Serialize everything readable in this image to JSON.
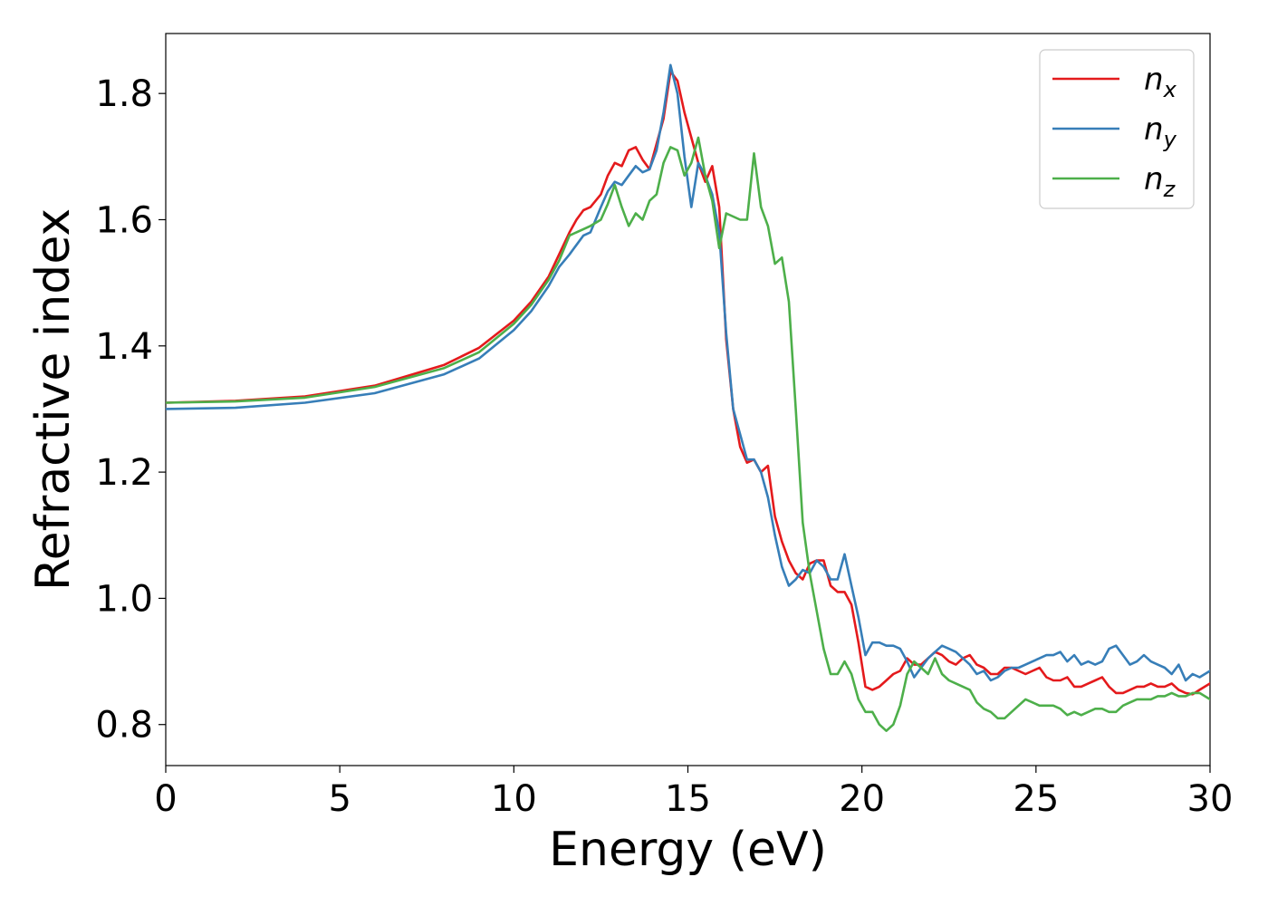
{
  "chart_data": {
    "type": "line",
    "title": "",
    "xlabel": "Energy (eV)",
    "ylabel": "Refractive index",
    "xlim": [
      0,
      30
    ],
    "ylim": [
      0.735,
      1.895
    ],
    "xticks": [
      0,
      5,
      10,
      15,
      20,
      25,
      30
    ],
    "xtick_labels": [
      "0",
      "5",
      "10",
      "15",
      "20",
      "25",
      "30"
    ],
    "yticks": [
      0.8,
      1.0,
      1.2,
      1.4,
      1.6,
      1.8
    ],
    "ytick_labels": [
      "0.8",
      "1.0",
      "1.2",
      "1.4",
      "1.6",
      "1.8"
    ],
    "grid": false,
    "legend_position": "top-right",
    "series": [
      {
        "name": "n_x",
        "label_base": "n",
        "label_sub": "x",
        "color": "#e41a1c",
        "x": [
          0,
          2,
          4,
          6,
          8,
          9,
          10,
          10.5,
          11,
          11.3,
          11.6,
          11.8,
          12,
          12.2,
          12.5,
          12.7,
          12.9,
          13.1,
          13.3,
          13.5,
          13.7,
          13.9,
          14.1,
          14.3,
          14.5,
          14.7,
          14.9,
          15.1,
          15.3,
          15.5,
          15.7,
          15.9,
          16.1,
          16.3,
          16.5,
          16.7,
          16.9,
          17.1,
          17.3,
          17.5,
          17.7,
          17.9,
          18.1,
          18.3,
          18.5,
          18.7,
          18.9,
          19.1,
          19.3,
          19.5,
          19.7,
          19.9,
          20.1,
          20.3,
          20.5,
          20.7,
          20.9,
          21.1,
          21.3,
          21.5,
          21.7,
          21.9,
          22.1,
          22.3,
          22.5,
          22.7,
          22.9,
          23.1,
          23.3,
          23.5,
          23.7,
          23.9,
          24.1,
          24.3,
          24.5,
          24.7,
          24.9,
          25.1,
          25.3,
          25.5,
          25.7,
          25.9,
          26.1,
          26.3,
          26.5,
          26.7,
          26.9,
          27.1,
          27.3,
          27.5,
          27.7,
          27.9,
          28.1,
          28.3,
          28.5,
          28.7,
          28.9,
          29.1,
          29.3,
          29.5,
          29.7,
          30
        ],
        "y": [
          1.31,
          1.313,
          1.32,
          1.337,
          1.37,
          1.397,
          1.44,
          1.47,
          1.51,
          1.545,
          1.58,
          1.6,
          1.615,
          1.62,
          1.64,
          1.67,
          1.69,
          1.685,
          1.71,
          1.715,
          1.695,
          1.68,
          1.72,
          1.76,
          1.835,
          1.82,
          1.77,
          1.73,
          1.69,
          1.66,
          1.685,
          1.62,
          1.41,
          1.3,
          1.24,
          1.215,
          1.22,
          1.2,
          1.21,
          1.13,
          1.09,
          1.06,
          1.04,
          1.03,
          1.055,
          1.06,
          1.06,
          1.02,
          1.01,
          1.01,
          0.99,
          0.93,
          0.86,
          0.855,
          0.86,
          0.87,
          0.88,
          0.885,
          0.905,
          0.895,
          0.895,
          0.905,
          0.915,
          0.91,
          0.9,
          0.895,
          0.905,
          0.91,
          0.895,
          0.89,
          0.88,
          0.88,
          0.89,
          0.89,
          0.885,
          0.88,
          0.885,
          0.89,
          0.875,
          0.87,
          0.87,
          0.875,
          0.86,
          0.86,
          0.865,
          0.87,
          0.875,
          0.86,
          0.85,
          0.85,
          0.855,
          0.86,
          0.86,
          0.865,
          0.86,
          0.86,
          0.865,
          0.855,
          0.85,
          0.848,
          0.855,
          0.865
        ]
      },
      {
        "name": "n_y",
        "label_base": "n",
        "label_sub": "y",
        "color": "#377eb8",
        "x": [
          0,
          2,
          4,
          6,
          8,
          9,
          10,
          10.5,
          11,
          11.3,
          11.6,
          11.8,
          12,
          12.2,
          12.5,
          12.7,
          12.9,
          13.1,
          13.3,
          13.5,
          13.7,
          13.9,
          14.1,
          14.3,
          14.5,
          14.7,
          14.9,
          15.1,
          15.3,
          15.5,
          15.7,
          15.9,
          16.1,
          16.3,
          16.5,
          16.7,
          16.9,
          17.1,
          17.3,
          17.5,
          17.7,
          17.9,
          18.1,
          18.3,
          18.5,
          18.7,
          18.9,
          19.1,
          19.3,
          19.5,
          19.7,
          19.9,
          20.1,
          20.3,
          20.5,
          20.7,
          20.9,
          21.1,
          21.3,
          21.5,
          21.7,
          21.9,
          22.1,
          22.3,
          22.5,
          22.7,
          22.9,
          23.1,
          23.3,
          23.5,
          23.7,
          23.9,
          24.1,
          24.3,
          24.5,
          24.7,
          24.9,
          25.1,
          25.3,
          25.5,
          25.7,
          25.9,
          26.1,
          26.3,
          26.5,
          26.7,
          26.9,
          27.1,
          27.3,
          27.5,
          27.7,
          27.9,
          28.1,
          28.3,
          28.5,
          28.7,
          28.9,
          29.1,
          29.3,
          29.5,
          29.7,
          30
        ],
        "y": [
          1.3,
          1.302,
          1.31,
          1.325,
          1.355,
          1.38,
          1.425,
          1.455,
          1.495,
          1.525,
          1.545,
          1.56,
          1.575,
          1.58,
          1.62,
          1.645,
          1.66,
          1.655,
          1.67,
          1.685,
          1.675,
          1.68,
          1.71,
          1.77,
          1.845,
          1.8,
          1.7,
          1.62,
          1.69,
          1.67,
          1.64,
          1.58,
          1.42,
          1.3,
          1.26,
          1.22,
          1.22,
          1.2,
          1.16,
          1.1,
          1.05,
          1.02,
          1.03,
          1.045,
          1.04,
          1.06,
          1.05,
          1.03,
          1.03,
          1.07,
          1.02,
          0.97,
          0.91,
          0.93,
          0.93,
          0.925,
          0.925,
          0.92,
          0.9,
          0.875,
          0.89,
          0.905,
          0.915,
          0.925,
          0.92,
          0.915,
          0.905,
          0.895,
          0.88,
          0.885,
          0.87,
          0.875,
          0.885,
          0.89,
          0.89,
          0.895,
          0.9,
          0.905,
          0.91,
          0.91,
          0.915,
          0.9,
          0.91,
          0.895,
          0.9,
          0.895,
          0.9,
          0.92,
          0.925,
          0.91,
          0.895,
          0.9,
          0.91,
          0.9,
          0.895,
          0.89,
          0.88,
          0.895,
          0.87,
          0.88,
          0.875,
          0.885
        ]
      },
      {
        "name": "n_z",
        "label_base": "n",
        "label_sub": "z",
        "color": "#4daf4a",
        "x": [
          0,
          2,
          4,
          6,
          8,
          9,
          10,
          10.5,
          11,
          11.3,
          11.6,
          11.8,
          12,
          12.2,
          12.5,
          12.7,
          12.9,
          13.1,
          13.3,
          13.5,
          13.7,
          13.9,
          14.1,
          14.3,
          14.5,
          14.7,
          14.9,
          15.1,
          15.3,
          15.5,
          15.7,
          15.9,
          16.1,
          16.3,
          16.5,
          16.7,
          16.9,
          17.1,
          17.3,
          17.5,
          17.7,
          17.9,
          18.1,
          18.3,
          18.5,
          18.7,
          18.9,
          19.1,
          19.3,
          19.5,
          19.7,
          19.9,
          20.1,
          20.3,
          20.5,
          20.7,
          20.9,
          21.1,
          21.3,
          21.5,
          21.7,
          21.9,
          22.1,
          22.3,
          22.5,
          22.7,
          22.9,
          23.1,
          23.3,
          23.5,
          23.7,
          23.9,
          24.1,
          24.3,
          24.5,
          24.7,
          24.9,
          25.1,
          25.3,
          25.5,
          25.7,
          25.9,
          26.1,
          26.3,
          26.5,
          26.7,
          26.9,
          27.1,
          27.3,
          27.5,
          27.7,
          27.9,
          28.1,
          28.3,
          28.5,
          28.7,
          28.9,
          29.1,
          29.3,
          29.5,
          29.7,
          30
        ],
        "y": [
          1.31,
          1.312,
          1.318,
          1.335,
          1.365,
          1.39,
          1.435,
          1.465,
          1.505,
          1.535,
          1.575,
          1.58,
          1.585,
          1.59,
          1.6,
          1.625,
          1.655,
          1.62,
          1.59,
          1.61,
          1.6,
          1.63,
          1.64,
          1.69,
          1.715,
          1.71,
          1.67,
          1.69,
          1.73,
          1.67,
          1.63,
          1.555,
          1.61,
          1.605,
          1.6,
          1.6,
          1.705,
          1.62,
          1.59,
          1.53,
          1.54,
          1.47,
          1.3,
          1.12,
          1.04,
          0.98,
          0.92,
          0.88,
          0.88,
          0.9,
          0.88,
          0.84,
          0.82,
          0.82,
          0.8,
          0.79,
          0.8,
          0.83,
          0.88,
          0.9,
          0.89,
          0.88,
          0.905,
          0.88,
          0.87,
          0.865,
          0.86,
          0.855,
          0.835,
          0.825,
          0.82,
          0.81,
          0.81,
          0.82,
          0.83,
          0.84,
          0.835,
          0.83,
          0.83,
          0.83,
          0.825,
          0.815,
          0.82,
          0.815,
          0.82,
          0.825,
          0.825,
          0.82,
          0.82,
          0.83,
          0.835,
          0.84,
          0.84,
          0.84,
          0.845,
          0.845,
          0.85,
          0.845,
          0.845,
          0.85,
          0.85,
          0.84
        ]
      }
    ]
  }
}
